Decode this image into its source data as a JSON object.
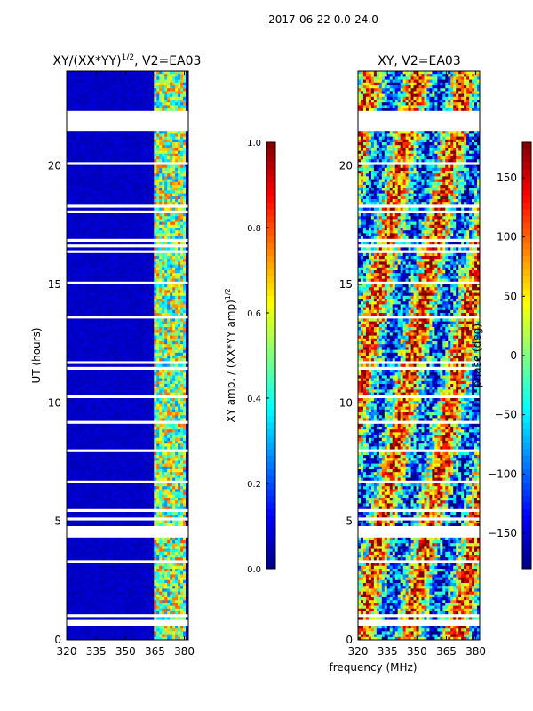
{
  "figure": {
    "suptitle": "2017-06-22 0.0-24.0",
    "xlabel": "frequency (MHz)"
  },
  "chart_data": [
    {
      "type": "heatmap",
      "title": "XY/(XX*YY)^1/2, V2=EA03",
      "title_base": "XY/(XX*YY)",
      "title_exp": "1/2",
      "title_suffix": ", V2=EA03",
      "xlabel": "",
      "ylabel": "UT (hours)",
      "xlim": [
        320,
        382
      ],
      "ylim": [
        0,
        24
      ],
      "xticks": [
        320,
        335,
        350,
        365,
        380
      ],
      "yticks": [
        0,
        5,
        10,
        15,
        20
      ],
      "colormap": "jet",
      "colorbar": {
        "label": "XY amp. / (XX*YY amp)^1/2",
        "label_base": "XY amp. / (XX*YY amp)",
        "label_exp": "1/2",
        "range": [
          0.0,
          1.0
        ],
        "ticks": [
          "0.0",
          "0.2",
          "0.4",
          "0.6",
          "0.8",
          "1.0"
        ]
      },
      "blank_time_ranges_hours": [
        [
          21.5,
          22.3
        ]
      ],
      "bright_band_mhz": [
        364,
        380
      ],
      "background_value": 0.05
    },
    {
      "type": "heatmap",
      "title": "XY, V2=EA03",
      "xlabel": "",
      "ylabel": "",
      "xlim": [
        320,
        382
      ],
      "ylim": [
        0,
        24
      ],
      "xticks": [
        320,
        335,
        350,
        365,
        380
      ],
      "yticks": [
        0,
        5,
        10,
        15,
        20
      ],
      "colormap": "jet",
      "colorbar": {
        "label": "phase (deg)",
        "range": [
          -180,
          180
        ],
        "ticks": [
          "150",
          "100",
          "50",
          "0",
          "−50",
          "−100",
          "−150"
        ],
        "tick_values": [
          150,
          100,
          50,
          0,
          -50,
          -100,
          -150
        ]
      },
      "blank_time_ranges_hours": [
        [
          21.5,
          22.3
        ]
      ]
    }
  ],
  "colors": {
    "jet_low": "#00007f",
    "jet_high": "#7f0000"
  }
}
